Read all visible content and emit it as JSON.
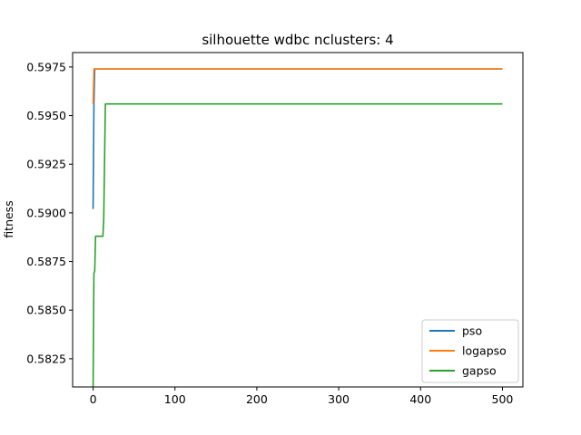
{
  "chart_data": {
    "type": "line",
    "title": "silhouette wdbc nclusters: 4",
    "xlabel": "",
    "ylabel": "fitness",
    "xlim": [
      -25,
      525
    ],
    "ylim": [
      0.58105,
      0.59824
    ],
    "xticks": [
      0,
      100,
      200,
      300,
      400,
      500
    ],
    "xtick_labels": [
      "0",
      "100",
      "200",
      "300",
      "400",
      "500"
    ],
    "yticks": [
      0.5825,
      0.585,
      0.5875,
      0.59,
      0.5925,
      0.595,
      0.5975
    ],
    "ytick_labels": [
      "0.5825",
      "0.5850",
      "0.5875",
      "0.5900",
      "0.5925",
      "0.5950",
      "0.5975"
    ],
    "grid": false,
    "legend_position": "lower-right",
    "series": [
      {
        "name": "pso",
        "color": "#1f77b4",
        "points": [
          [
            0,
            0.5902
          ],
          [
            1,
            0.5956
          ],
          [
            2,
            0.5974
          ],
          [
            500,
            0.5974
          ]
        ]
      },
      {
        "name": "logapso",
        "color": "#ff7f0e",
        "points": [
          [
            0,
            0.5956
          ],
          [
            1,
            0.5974
          ],
          [
            500,
            0.5974
          ]
        ]
      },
      {
        "name": "gapso",
        "color": "#2ca02c",
        "points": [
          [
            0,
            0.581
          ],
          [
            1,
            0.5869
          ],
          [
            2,
            0.587
          ],
          [
            3,
            0.5888
          ],
          [
            12,
            0.5888
          ],
          [
            13,
            0.5897
          ],
          [
            15,
            0.5956
          ],
          [
            500,
            0.5956
          ]
        ]
      }
    ]
  }
}
